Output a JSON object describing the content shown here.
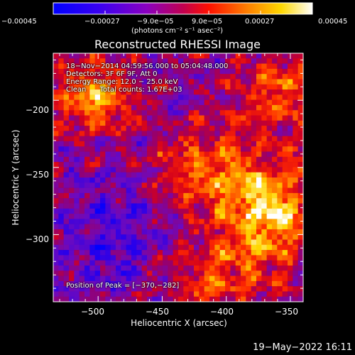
{
  "chart_data": {
    "type": "heatmap",
    "title": "Reconstructed RHESSI Image",
    "xlabel": "Heliocentric X (arcsec)",
    "ylabel": "Heliocentric Y (arcsec)",
    "xlim": [
      -535,
      -340
    ],
    "ylim": [
      -350,
      -165
    ],
    "xticks": [
      -500,
      -450,
      -400,
      -350
    ],
    "xtick_labels": [
      "−500",
      "−450",
      "−400",
      "−350"
    ],
    "yticks": [
      -200,
      -250,
      -300
    ],
    "ytick_labels": [
      "−200",
      "−250",
      "−300"
    ],
    "colormap": "rainbow-hot (blue-purple-red-orange-yellow-white)",
    "colorbar": {
      "range": [
        -0.00045,
        0.00045
      ],
      "ticks": [
        -0.00045,
        -0.00027,
        -9e-05,
        9e-05,
        0.00027,
        0.00045
      ],
      "tick_labels": [
        "−0.00045",
        "−0.00027",
        "−9.0e−05",
        "9.0e−05",
        "0.00027",
        "0.00045"
      ],
      "unit_label": "(photons cm⁻² s⁻¹ asec⁻²)"
    },
    "peak_position": [
      -370,
      -282
    ],
    "annotations": {
      "time_range": "18−Nov−2014 04:59:56.000 to 05:04:48.000",
      "detectors": "Detectors: 3F 6F 9F, Att 0",
      "energy_range": "Energy Range: 12.0 − 25.0 keV",
      "method_counts": "Clean      Total counts: 1.67E+03",
      "peak_text": "Position of Peak = [−370,−282]"
    }
  },
  "footer": {
    "date_stamp": "19−May−2022 16:11"
  },
  "colors": {
    "background": "#000000",
    "foreground": "#ffffff",
    "cmap_stops": [
      "#0000ff",
      "#7a00d0",
      "#b00070",
      "#ff1000",
      "#ff7a00",
      "#ffd000",
      "#ffffff"
    ]
  }
}
